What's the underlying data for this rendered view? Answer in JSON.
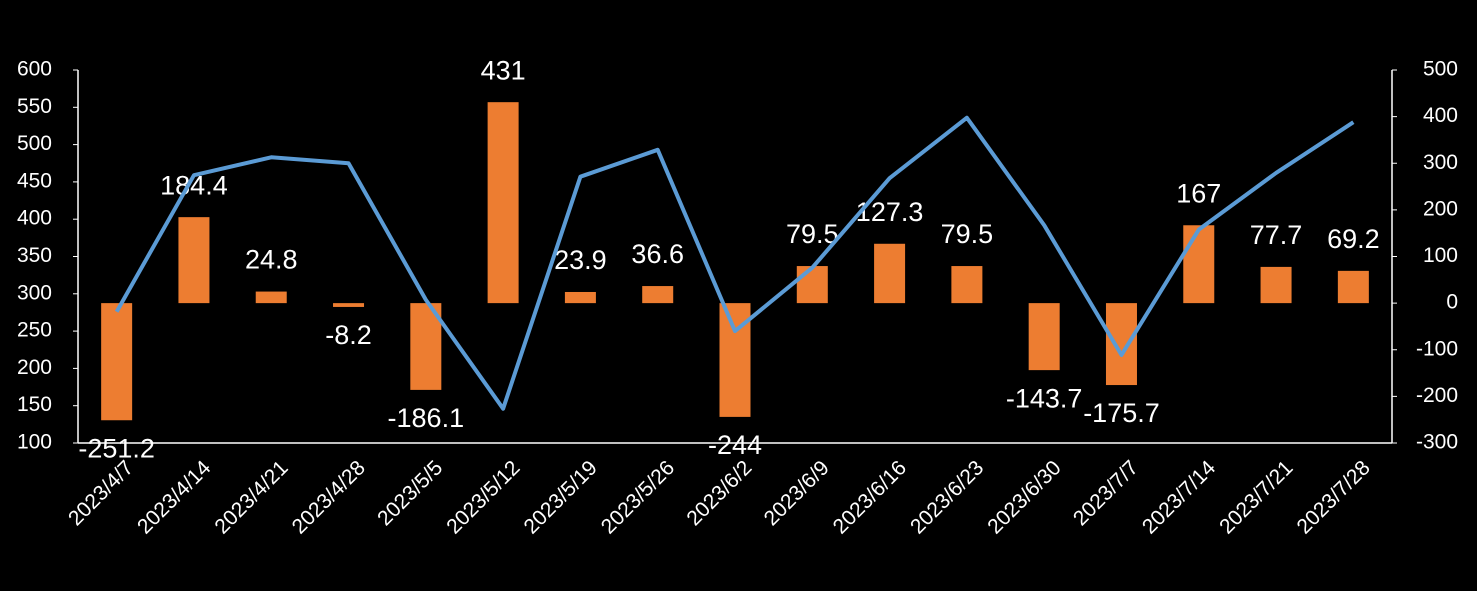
{
  "chart_data": {
    "type": "bar-line",
    "categories": [
      "2023/4/7",
      "2023/4/14",
      "2023/4/21",
      "2023/4/28",
      "2023/5/5",
      "2023/5/12",
      "2023/5/19",
      "2023/5/26",
      "2023/6/2",
      "2023/6/9",
      "2023/6/16",
      "2023/6/23",
      "2023/6/30",
      "2023/7/7",
      "2023/7/14",
      "2023/7/21",
      "2023/7/28"
    ],
    "series": [
      {
        "type": "bar",
        "axis": "y2",
        "color": "#ed7d31",
        "data_labels": true,
        "values": [
          -251.2,
          184.4,
          24.8,
          -8.2,
          -186.1,
          431,
          23.9,
          36.6,
          -244,
          79.5,
          127.3,
          79.5,
          -143.7,
          -175.7,
          167,
          77.7,
          69.2
        ]
      },
      {
        "type": "line",
        "axis": "y",
        "color": "#5b9bd5",
        "values": [
          276,
          459,
          483,
          475,
          292,
          146,
          457,
          493,
          250,
          335,
          455,
          536,
          392,
          218,
          386,
          462,
          530
        ]
      }
    ],
    "ylim": [
      100,
      600
    ],
    "yticks": [
      100,
      150,
      200,
      250,
      300,
      350,
      400,
      450,
      500,
      550,
      600
    ],
    "y2lim": [
      -300,
      500
    ],
    "y2ticks": [
      -300,
      -200,
      -100,
      0,
      100,
      200,
      300,
      400,
      500
    ]
  }
}
